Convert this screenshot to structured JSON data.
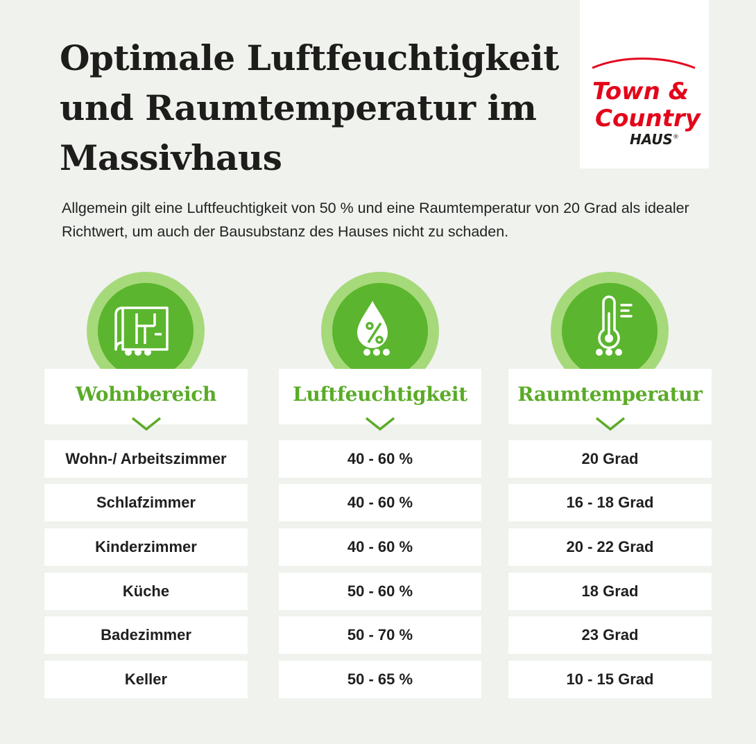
{
  "title": "Optimale Luftfeuchtigkeit und Raumtemperatur im Massivhaus",
  "intro": "Allgemein gilt eine Luftfeuchtigkeit von 50 % und eine Raumtemperatur von 20 Grad als idealer Richtwert, um auch der Bausubstanz des Hauses nicht zu schaden.",
  "logo": {
    "line1": "Town &",
    "line2": "Country",
    "line3": "HAUS",
    "reg": "®",
    "brand_color": "#e3061b"
  },
  "colors": {
    "accent_green": "#5aab27",
    "icon_green": "#5bb52e",
    "halo_green": "#a6d97a"
  },
  "columns": [
    {
      "header": "Wohnbereich",
      "icon": "floor-plan-icon",
      "rows": [
        "Wohn-/ Arbeitszimmer",
        "Schlafzimmer",
        "Kinderzimmer",
        "Küche",
        "Badezimmer",
        "Keller"
      ]
    },
    {
      "header": "Luftfeuchtigkeit",
      "icon": "humidity-drop-icon",
      "rows": [
        "40 - 60 %",
        "40 - 60 %",
        "40 - 60 %",
        "50 - 60 %",
        "50 - 70 %",
        "50 - 65 %"
      ]
    },
    {
      "header": "Raumtemperatur",
      "icon": "thermometer-icon",
      "rows": [
        "20 Grad",
        "16 - 18 Grad",
        "20 - 22 Grad",
        "18 Grad",
        "23 Grad",
        "10 - 15 Grad"
      ]
    }
  ]
}
